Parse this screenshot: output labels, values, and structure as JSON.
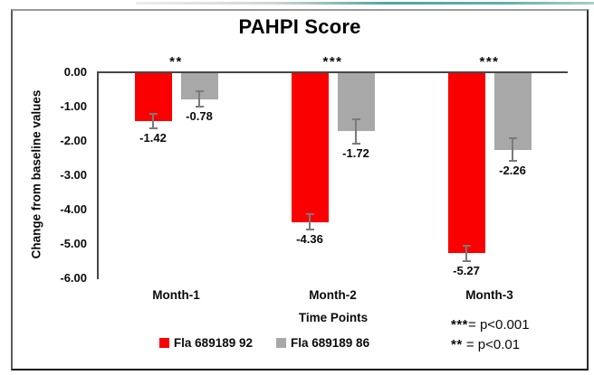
{
  "chart_data": {
    "type": "bar",
    "title": "PAHPI Score",
    "ylabel": "Change from baseline values",
    "xlabel": "Time Points",
    "categories": [
      "Month-1",
      "Month-2",
      "Month-3"
    ],
    "series": [
      {
        "name": "Fla 689189 92",
        "color": "#fb0000",
        "values": [
          -1.42,
          -4.36,
          -5.27
        ],
        "errors": [
          0.21,
          0.22,
          0.22
        ]
      },
      {
        "name": "Fla 689189 86",
        "color": "#a8a8a8",
        "values": [
          -0.78,
          -1.72,
          -2.26
        ],
        "errors": [
          0.22,
          0.35,
          0.33
        ]
      }
    ],
    "significance": [
      "**",
      "***",
      "***"
    ],
    "yticks": [
      "0.00",
      "-1.00",
      "-2.00",
      "-3.00",
      "-4.00",
      "-5.00",
      "-6.00"
    ],
    "ylim": [
      0,
      -6
    ],
    "grid": false,
    "legend_position": "bottom",
    "annotations": [
      {
        "marker": "***",
        "definition": "= p<0.001"
      },
      {
        "marker": "**",
        "definition": " = p<0.01"
      }
    ],
    "colors": {
      "axis": "#474747",
      "error_bar": "#7a7a7a",
      "accent_line": "#4fa5a1"
    }
  }
}
